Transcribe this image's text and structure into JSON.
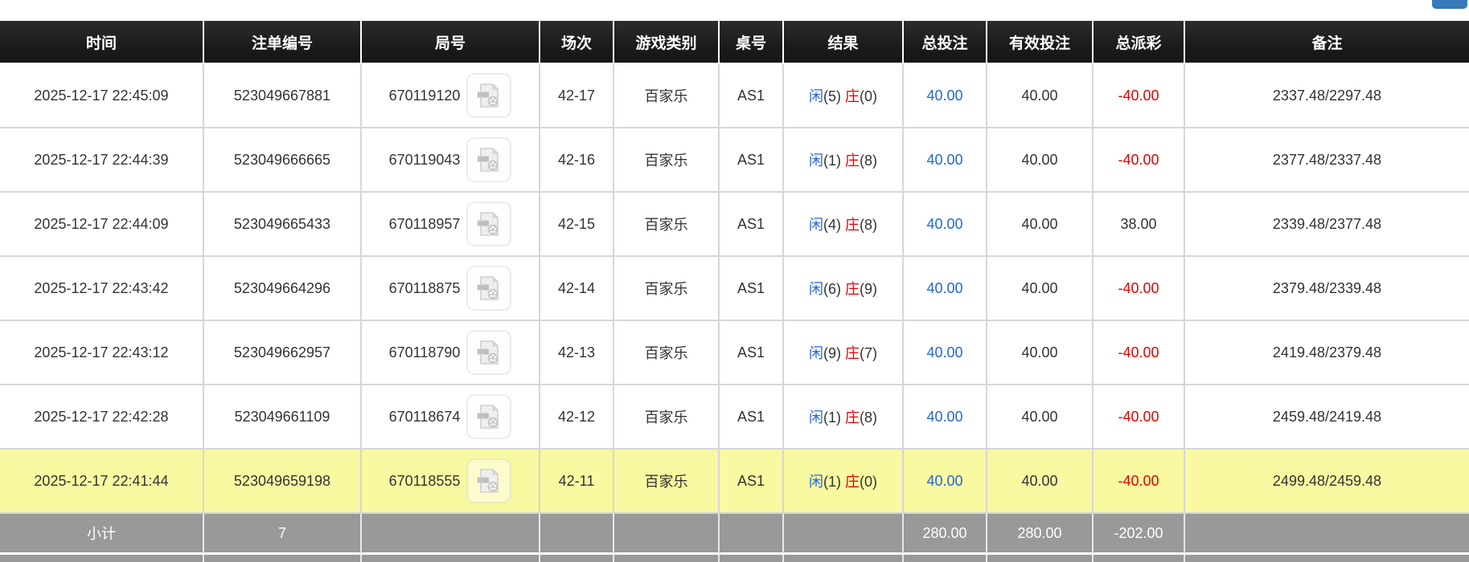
{
  "labels": {
    "player": "闲",
    "banker": "庄"
  },
  "colors": {
    "header_bg": "#1f1f1f",
    "accent_blue": "#2365d8",
    "negative_red": "#e60000",
    "highlight_yellow": "#f9f9a2",
    "subtotal_gray": "#999999",
    "top_button_blue": "#3779b9"
  },
  "icons": {
    "round_cell_icon": "video-record-icon"
  },
  "table": {
    "columns": [
      {
        "key": "time",
        "label": "时间"
      },
      {
        "key": "bet_id",
        "label": "注单编号"
      },
      {
        "key": "round_id",
        "label": "局号"
      },
      {
        "key": "session",
        "label": "场次"
      },
      {
        "key": "game_type",
        "label": "游戏类别"
      },
      {
        "key": "table_no",
        "label": "桌号"
      },
      {
        "key": "result",
        "label": "结果"
      },
      {
        "key": "total_bet",
        "label": "总投注",
        "cell_class": "blue"
      },
      {
        "key": "valid_bet",
        "label": "有效投注"
      },
      {
        "key": "total_payout",
        "label": "总派彩"
      },
      {
        "key": "remark",
        "label": "备注"
      }
    ],
    "rows": [
      {
        "time": "2025-12-17 22:45:09",
        "bet_id": "523049667881",
        "round_id": "670119120",
        "session": "42-17",
        "game_type": "百家乐",
        "table_no": "AS1",
        "result": {
          "player": "5",
          "banker": "0"
        },
        "total_bet": "40.00",
        "valid_bet": "40.00",
        "total_payout": "-40.00",
        "remark": "2337.48/2297.48",
        "highlighted": false
      },
      {
        "time": "2025-12-17 22:44:39",
        "bet_id": "523049666665",
        "round_id": "670119043",
        "session": "42-16",
        "game_type": "百家乐",
        "table_no": "AS1",
        "result": {
          "player": "1",
          "banker": "8"
        },
        "total_bet": "40.00",
        "valid_bet": "40.00",
        "total_payout": "-40.00",
        "remark": "2377.48/2337.48",
        "highlighted": false
      },
      {
        "time": "2025-12-17 22:44:09",
        "bet_id": "523049665433",
        "round_id": "670118957",
        "session": "42-15",
        "game_type": "百家乐",
        "table_no": "AS1",
        "result": {
          "player": "4",
          "banker": "8"
        },
        "total_bet": "40.00",
        "valid_bet": "40.00",
        "total_payout": "38.00",
        "remark": "2339.48/2377.48",
        "highlighted": false
      },
      {
        "time": "2025-12-17 22:43:42",
        "bet_id": "523049664296",
        "round_id": "670118875",
        "session": "42-14",
        "game_type": "百家乐",
        "table_no": "AS1",
        "result": {
          "player": "6",
          "banker": "9"
        },
        "total_bet": "40.00",
        "valid_bet": "40.00",
        "total_payout": "-40.00",
        "remark": "2379.48/2339.48",
        "highlighted": false
      },
      {
        "time": "2025-12-17 22:43:12",
        "bet_id": "523049662957",
        "round_id": "670118790",
        "session": "42-13",
        "game_type": "百家乐",
        "table_no": "AS1",
        "result": {
          "player": "9",
          "banker": "7"
        },
        "total_bet": "40.00",
        "valid_bet": "40.00",
        "total_payout": "-40.00",
        "remark": "2419.48/2379.48",
        "highlighted": false
      },
      {
        "time": "2025-12-17 22:42:28",
        "bet_id": "523049661109",
        "round_id": "670118674",
        "session": "42-12",
        "game_type": "百家乐",
        "table_no": "AS1",
        "result": {
          "player": "1",
          "banker": "8"
        },
        "total_bet": "40.00",
        "valid_bet": "40.00",
        "total_payout": "-40.00",
        "remark": "2459.48/2419.48",
        "highlighted": false
      },
      {
        "time": "2025-12-17 22:41:44",
        "bet_id": "523049659198",
        "round_id": "670118555",
        "session": "42-11",
        "game_type": "百家乐",
        "table_no": "AS1",
        "result": {
          "player": "1",
          "banker": "0"
        },
        "total_bet": "40.00",
        "valid_bet": "40.00",
        "total_payout": "-40.00",
        "remark": "2499.48/2459.48",
        "highlighted": true
      }
    ],
    "subtotal": {
      "time": "小计",
      "bet_id": "7",
      "total_bet": "280.00",
      "valid_bet": "280.00",
      "total_payout": "-202.00"
    }
  }
}
